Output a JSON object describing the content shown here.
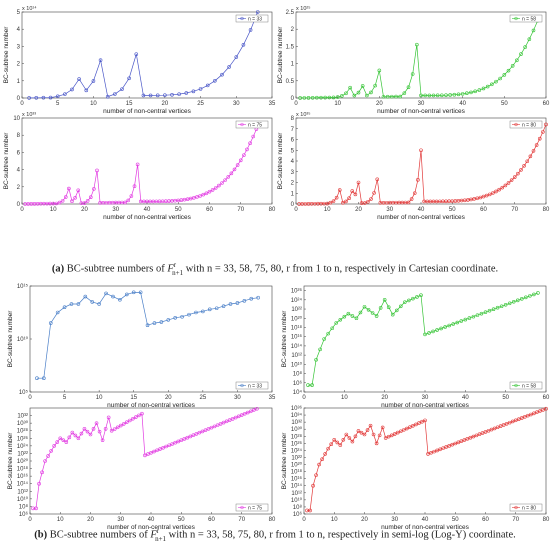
{
  "captions": {
    "a": {
      "label": "(a)",
      "pre": " BC-subtree numbers of ",
      "F": "F",
      "sup": "r",
      "sub": "n+1",
      "post": " with n = 33, 58, 75, 80, r from 1 to n, respectively in Cartesian coordinate."
    },
    "b": {
      "label": "(b)",
      "pre": " BC-subtree numbers of ",
      "F": "F",
      "sup": "r",
      "sub": "n+1",
      "post": " with n = 33, 58, 75, 80, r from 1 to n, respectively in semi-log (Log-Y) coordinate."
    }
  },
  "chart_data": [
    {
      "type": "line",
      "scale": "linear",
      "color": "#4a57c8",
      "xlabel": "number of  non-central vertices",
      "ylabel": "BC-subtree number",
      "exponent": "x 10¹⁴",
      "legend": "n = 33",
      "xlim": [
        0,
        35
      ],
      "xticks": [
        0,
        5,
        10,
        15,
        20,
        25,
        30,
        35
      ],
      "ylim": [
        0,
        5
      ],
      "yticks": [
        0,
        1,
        2,
        3,
        4,
        5
      ],
      "n": 33,
      "peaks": [
        [
          8,
          1.1
        ],
        [
          11,
          2.2
        ],
        [
          16,
          2.55
        ]
      ],
      "end": 5.0
    },
    {
      "type": "line",
      "scale": "linear",
      "color": "#36c436",
      "xlabel": "number of  non-central vertices",
      "ylabel": "BC-subtree number",
      "exponent": "x 10²⁵",
      "legend": "n = 58",
      "xlim": [
        0,
        60
      ],
      "xticks": [
        0,
        10,
        20,
        30,
        40,
        50,
        60
      ],
      "ylim": [
        0,
        2.5
      ],
      "yticks": [
        0,
        0.5,
        1,
        1.5,
        2,
        2.5
      ],
      "n": 58,
      "peaks": [
        [
          13,
          0.3
        ],
        [
          16,
          0.35
        ],
        [
          20,
          0.8
        ],
        [
          29,
          1.55
        ]
      ],
      "end": 2.25
    },
    {
      "type": "line",
      "scale": "linear",
      "color": "#e23be2",
      "xlabel": "number of  non-central vertices",
      "ylabel": "BC-subtree number",
      "exponent": "x 10³³",
      "legend": "n = 75",
      "xlim": [
        0,
        80
      ],
      "xticks": [
        0,
        10,
        20,
        30,
        40,
        50,
        60,
        70,
        80
      ],
      "ylim": [
        0,
        10
      ],
      "yticks": [
        0,
        2,
        4,
        6,
        8,
        10
      ],
      "n": 75,
      "peaks": [
        [
          15,
          1.8
        ],
        [
          18,
          1.6
        ],
        [
          24,
          3.9
        ],
        [
          37,
          4.6
        ]
      ],
      "end": 8.7
    },
    {
      "type": "line",
      "scale": "linear",
      "color": "#e23a3a",
      "xlabel": "number of  non-central vertices",
      "ylabel": "BC-subtree number",
      "exponent": "x 10³⁵",
      "legend": "n = 80",
      "xlim": [
        0,
        80
      ],
      "xticks": [
        0,
        10,
        20,
        30,
        40,
        50,
        60,
        70,
        80
      ],
      "ylim": [
        0,
        8
      ],
      "yticks": [
        0,
        1,
        2,
        3,
        4,
        5,
        6,
        7,
        8
      ],
      "n": 80,
      "peaks": [
        [
          14,
          1.3
        ],
        [
          18,
          1.2
        ],
        [
          20,
          2.0
        ],
        [
          26,
          2.3
        ],
        [
          40,
          5.0
        ]
      ],
      "end": 7.4
    },
    {
      "type": "line",
      "scale": "log",
      "color": "#4a7fc8",
      "xlabel": "number of  non-central vertices",
      "ylabel": "BC-subtree number",
      "legend": "n = 33",
      "xlim": [
        0,
        35
      ],
      "xticks": [
        0,
        5,
        10,
        15,
        20,
        25,
        30,
        35
      ],
      "ylim": [
        5,
        15
      ],
      "yticks": [
        5,
        10,
        15
      ],
      "ytick_labels": [
        "10⁵",
        "10¹⁰",
        "10¹⁵"
      ],
      "points": [
        [
          1,
          6.3
        ],
        [
          2,
          6.3
        ],
        [
          3,
          11.5
        ],
        [
          4,
          12.5
        ],
        [
          5,
          13.0
        ],
        [
          6,
          13.3
        ],
        [
          7,
          13.3
        ],
        [
          8,
          14.0
        ],
        [
          9,
          13.5
        ],
        [
          10,
          13.3
        ],
        [
          11,
          14.3
        ],
        [
          12,
          14.0
        ],
        [
          13,
          13.7
        ],
        [
          14,
          14.2
        ],
        [
          15,
          14.4
        ],
        [
          16,
          14.4
        ],
        [
          17,
          11.3
        ],
        [
          18,
          11.5
        ],
        [
          19,
          11.6
        ],
        [
          20,
          11.8
        ],
        [
          21,
          12.0
        ],
        [
          22,
          12.1
        ],
        [
          23,
          12.3
        ],
        [
          24,
          12.5
        ],
        [
          25,
          12.6
        ],
        [
          26,
          12.8
        ],
        [
          27,
          12.9
        ],
        [
          28,
          13.1
        ],
        [
          29,
          13.3
        ],
        [
          30,
          13.4
        ],
        [
          31,
          13.6
        ],
        [
          32,
          13.8
        ],
        [
          33,
          13.9
        ]
      ]
    },
    {
      "type": "line",
      "scale": "log",
      "color": "#36c436",
      "xlabel": "number of  non-central vertices",
      "ylabel": "BC-subtree number",
      "legend": "n = 58",
      "xlim": [
        0,
        60
      ],
      "xticks": [
        0,
        10,
        20,
        30,
        40,
        50,
        60
      ],
      "ylim": [
        4,
        27
      ],
      "yticks": [
        4,
        6,
        8,
        10,
        12,
        14,
        16,
        18,
        20,
        22,
        24,
        26
      ],
      "ytick_labels": [
        "10⁴",
        "10⁶",
        "10⁸",
        "10¹⁰",
        "10¹²",
        "10¹⁴",
        "10¹⁶",
        "10¹⁸",
        "10²⁰",
        "10²²",
        "10²⁴",
        "10²⁶"
      ],
      "points": [
        [
          1,
          5.5
        ],
        [
          2,
          5.5
        ],
        [
          3,
          11.0
        ],
        [
          5,
          15.5
        ],
        [
          8,
          19.0
        ],
        [
          11,
          21.0
        ],
        [
          13,
          20.0
        ],
        [
          15,
          22.5
        ],
        [
          18,
          20.5
        ],
        [
          20,
          24.0
        ],
        [
          22,
          20.8
        ],
        [
          25,
          23.5
        ],
        [
          29,
          25.0
        ],
        [
          30,
          16.5
        ],
        [
          58,
          25.5
        ]
      ]
    },
    {
      "type": "line",
      "scale": "log",
      "color": "#e23be2",
      "xlabel": "number of  non-central vertices",
      "ylabel": "BC-subtree number",
      "legend": "n = 75",
      "xlim": [
        0,
        80
      ],
      "xticks": [
        0,
        10,
        20,
        30,
        40,
        50,
        60,
        70,
        80
      ],
      "ylim": [
        6,
        34
      ],
      "yticks": [
        6,
        8,
        10,
        12,
        14,
        16,
        18,
        20,
        22,
        24,
        26,
        28,
        30,
        32
      ],
      "ytick_labels": [
        "10⁶",
        "10⁸",
        "10¹⁰",
        "10¹²",
        "10¹⁴",
        "10¹⁶",
        "10¹⁸",
        "10²⁰",
        "10²²",
        "10²⁴",
        "10²⁶",
        "10²⁸",
        "10³⁰",
        "10³²"
      ],
      "points": [
        [
          1,
          7.5
        ],
        [
          2,
          7.5
        ],
        [
          3,
          14.0
        ],
        [
          5,
          20.0
        ],
        [
          8,
          24.0
        ],
        [
          10,
          26.0
        ],
        [
          12,
          25.0
        ],
        [
          14,
          27.5
        ],
        [
          16,
          26.0
        ],
        [
          18,
          28.5
        ],
        [
          20,
          27.0
        ],
        [
          22,
          30.0
        ],
        [
          24,
          25.5
        ],
        [
          26,
          31.5
        ],
        [
          27,
          28.0
        ],
        [
          37,
          32.5
        ],
        [
          38,
          21.5
        ],
        [
          75,
          33.8
        ]
      ]
    },
    {
      "type": "line",
      "scale": "log",
      "color": "#e23a3a",
      "xlabel": "number of  non-central vertices",
      "ylabel": "BC-subtree number",
      "legend": "n = 80",
      "xlim": [
        0,
        80
      ],
      "xticks": [
        0,
        10,
        20,
        30,
        40,
        50,
        60,
        70,
        80
      ],
      "ylim": [
        6,
        36
      ],
      "yticks": [
        6,
        8,
        10,
        12,
        14,
        16,
        18,
        20,
        22,
        24,
        26,
        28,
        30,
        32,
        34,
        36
      ],
      "ytick_labels": [
        "10⁶",
        "10⁸",
        "10¹⁰",
        "10¹²",
        "10¹⁴",
        "10¹⁶",
        "10¹⁸",
        "10²⁰",
        "10²²",
        "10²⁴",
        "10²⁶",
        "10²⁸",
        "10³⁰",
        "10³²",
        "10³⁴",
        "10³⁶"
      ],
      "points": [
        [
          1,
          7.0
        ],
        [
          2,
          7.0
        ],
        [
          3,
          14.0
        ],
        [
          5,
          20.0
        ],
        [
          8,
          24.5
        ],
        [
          10,
          27.0
        ],
        [
          12,
          25.5
        ],
        [
          14,
          28.5
        ],
        [
          16,
          26.5
        ],
        [
          18,
          29.5
        ],
        [
          20,
          28.5
        ],
        [
          22,
          31.0
        ],
        [
          24,
          26.0
        ],
        [
          26,
          30.5
        ],
        [
          27,
          27.5
        ],
        [
          40,
          32.5
        ],
        [
          41,
          23.0
        ],
        [
          80,
          35.8
        ]
      ]
    }
  ]
}
